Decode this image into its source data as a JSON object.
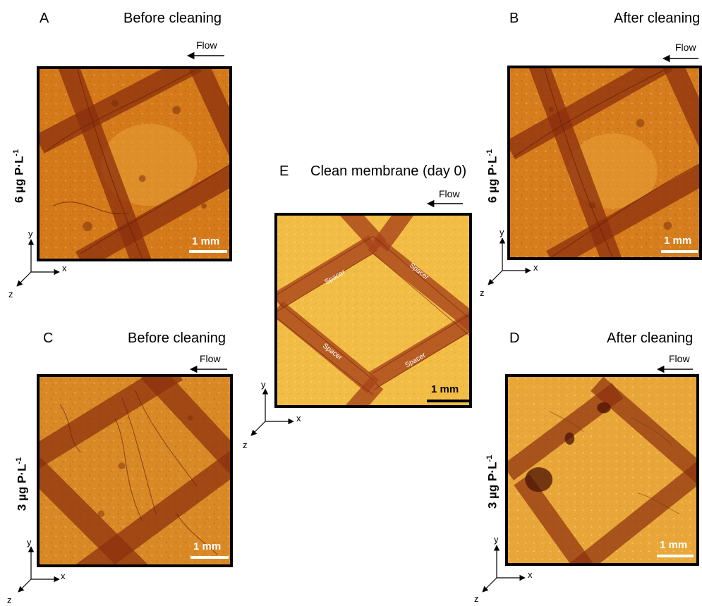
{
  "panels": {
    "A": {
      "letter": "A",
      "title": "Before cleaning",
      "flow": "Flow",
      "scale": "1 mm"
    },
    "B": {
      "letter": "B",
      "title": "After cleaning",
      "flow": "Flow",
      "scale": "1 mm"
    },
    "C": {
      "letter": "C",
      "title": "Before cleaning",
      "flow": "Flow",
      "scale": "1 mm"
    },
    "D": {
      "letter": "D",
      "title": "After cleaning",
      "flow": "Flow",
      "scale": "1 mm"
    },
    "E": {
      "letter": "E",
      "title": "Clean membrane (day 0)",
      "flow": "Flow",
      "scale": "1 mm",
      "spacer_labels": [
        "Spacer",
        "Spacer",
        "Spacer",
        "Spacer"
      ]
    }
  },
  "concentrations": {
    "top_left": {
      "main": "6 µg P·L",
      "exp": "-1"
    },
    "top_right": {
      "main": "6 µg P·L",
      "exp": "-1"
    },
    "bottom_left": {
      "main": "3 µg P·L",
      "exp": "-1"
    },
    "bottom_right": {
      "main": "3 µg P·L",
      "exp": "-1"
    }
  },
  "axes": {
    "x": "x",
    "y": "y",
    "z": "z"
  },
  "colors": {
    "fouled_bg": "#d27a1c",
    "clean_bg": "#f0b73c",
    "spacer": "#9a3c16",
    "frame": "#000000"
  }
}
